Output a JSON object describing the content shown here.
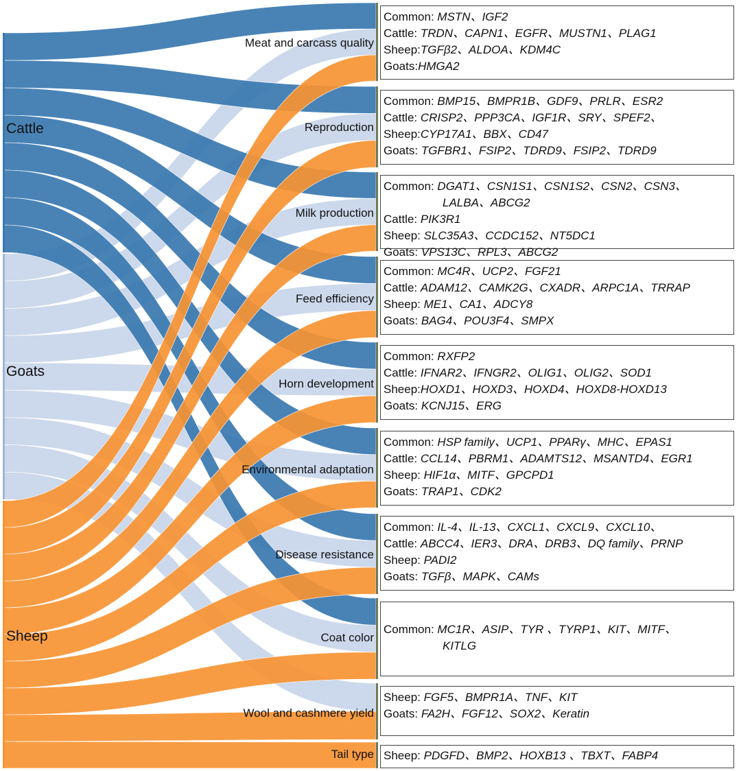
{
  "sources": [
    {
      "id": "cattle",
      "label": "Cattle",
      "color": "#3a78b0"
    },
    {
      "id": "goats",
      "label": "Goats",
      "color": "#c9d6ea"
    },
    {
      "id": "sheep",
      "label": "Sheep",
      "color": "#f79433"
    }
  ],
  "traits": [
    {
      "id": "meat",
      "label": "Meat and carcass quality"
    },
    {
      "id": "repro",
      "label": "Reproduction"
    },
    {
      "id": "milk",
      "label": "Milk production"
    },
    {
      "id": "feed",
      "label": "Feed efficiency"
    },
    {
      "id": "horn",
      "label": "Horn development"
    },
    {
      "id": "env",
      "label": "Environmental adaptation"
    },
    {
      "id": "disease",
      "label": "Disease resistance"
    },
    {
      "id": "coat",
      "label": "Coat color"
    },
    {
      "id": "wool",
      "label": "Wool and cashmere yield"
    },
    {
      "id": "tail",
      "label": "Tail type"
    }
  ],
  "gene_boxes": [
    {
      "trait": "meat",
      "lines": [
        {
          "prefix": "Common: ",
          "genes": "MSTN、IGF2"
        },
        {
          "prefix": "Cattle: ",
          "genes": "TRDN、CAPN1、EGFR、MUSTN1、PLAG1"
        },
        {
          "prefix": "Sheep:",
          "genes": "TGFβ2、ALDOA、KDM4C"
        },
        {
          "prefix": "Goats:",
          "genes": "HMGA2"
        }
      ]
    },
    {
      "trait": "repro",
      "lines": [
        {
          "prefix": "Common: ",
          "genes": "BMP15、BMPR1B、GDF9、PRLR、ESR2"
        },
        {
          "prefix": "Cattle: ",
          "genes": "CRISP2、PPP3CA、IGF1R、SRY、SPEF2、"
        },
        {
          "prefix": "Sheep:",
          "genes": "CYP17A1、BBX、CD47"
        },
        {
          "prefix": "Goats: ",
          "genes": "TGFBR1、FSIP2、TDRD9、FSIP2、TDRD9"
        }
      ]
    },
    {
      "trait": "milk",
      "lines": [
        {
          "prefix": "Common: ",
          "genes": "DGAT1、CSN1S1、CSN1S2、CSN2、CSN3、"
        },
        {
          "prefix": "",
          "genes": "LALBA、ABCG2",
          "cont": true
        },
        {
          "prefix": "Cattle: ",
          "genes": "PIK3R1"
        },
        {
          "prefix": "Sheep: ",
          "genes": "SLC35A3、CCDC152、NT5DC1"
        },
        {
          "prefix": "Goats: ",
          "genes": "VPS13C、RPL3、ABCG2"
        }
      ]
    },
    {
      "trait": "feed",
      "lines": [
        {
          "prefix": "Common: ",
          "genes": "MC4R、UCP2、FGF21"
        },
        {
          "prefix": "Cattle: ",
          "genes": "ADAM12、CAMK2G、CXADR、ARPC1A、TRRAP"
        },
        {
          "prefix": "Sheep: ",
          "genes": "ME1、CA1、ADCY8"
        },
        {
          "prefix": "Goats: ",
          "genes": "BAG4、POU3F4、SMPX"
        }
      ]
    },
    {
      "trait": "horn",
      "lines": [
        {
          "prefix": "Common: ",
          "genes": "RXFP2"
        },
        {
          "prefix": "Cattle: ",
          "genes": "IFNAR2、IFNGR2、OLIG1、OLIG2、SOD1"
        },
        {
          "prefix": "Sheep:",
          "genes": "HOXD1、HOXD3、HOXD4、HOXD8-HOXD13"
        },
        {
          "prefix": "Goats: ",
          "genes": "KCNJ15、ERG"
        }
      ]
    },
    {
      "trait": "env",
      "lines": [
        {
          "prefix": "Common: ",
          "genes": "HSP family、UCP1、PPARγ、MHC、EPAS1"
        },
        {
          "prefix": "Cattle: ",
          "genes": "CCL14、PBRM1、ADAMTS12、MSANTD4、EGR1"
        },
        {
          "prefix": "Sheep: ",
          "genes": "HIF1α、MITF、GPCPD1"
        },
        {
          "prefix": "Goats: ",
          "genes": "TRAP1、CDK2"
        }
      ]
    },
    {
      "trait": "disease",
      "lines": [
        {
          "prefix": "Common: ",
          "genes": "IL-4、IL-13、CXCL1、CXCL9、CXCL10、"
        },
        {
          "prefix": "Cattle: ",
          "genes": "ABCC4、IER3、DRA、DRB3、DQ family、PRNP"
        },
        {
          "prefix": "Sheep: ",
          "genes": "PADI2"
        },
        {
          "prefix": "Goats: ",
          "genes": "TGFβ、MAPK、CAMs"
        }
      ]
    },
    {
      "trait": "coat",
      "lines": [
        {
          "prefix": "Common: ",
          "genes": "MC1R、ASIP、TYR 、TYRP1、KIT、MITF、"
        },
        {
          "prefix": "",
          "genes": "KITLG",
          "cont": true
        }
      ]
    },
    {
      "trait": "wool",
      "lines": [
        {
          "prefix": "Sheep: ",
          "genes": "FGF5、BMPR1A、TNF、KIT"
        },
        {
          "prefix": "Goats: ",
          "genes": "FA2H、FGF12、SOX2、Keratin"
        }
      ]
    },
    {
      "trait": "tail",
      "lines": [
        {
          "prefix": "Sheep: ",
          "genes": "PDGFD、BMP2、HOXB13 、TBXT、FABP4"
        }
      ]
    }
  ],
  "flows": [
    {
      "source": "cattle",
      "target": "meat"
    },
    {
      "source": "cattle",
      "target": "repro"
    },
    {
      "source": "cattle",
      "target": "milk"
    },
    {
      "source": "cattle",
      "target": "feed"
    },
    {
      "source": "cattle",
      "target": "horn"
    },
    {
      "source": "cattle",
      "target": "env"
    },
    {
      "source": "cattle",
      "target": "disease"
    },
    {
      "source": "cattle",
      "target": "coat"
    },
    {
      "source": "goats",
      "target": "meat"
    },
    {
      "source": "goats",
      "target": "repro"
    },
    {
      "source": "goats",
      "target": "milk"
    },
    {
      "source": "goats",
      "target": "feed"
    },
    {
      "source": "goats",
      "target": "horn"
    },
    {
      "source": "goats",
      "target": "env"
    },
    {
      "source": "goats",
      "target": "disease"
    },
    {
      "source": "goats",
      "target": "coat"
    },
    {
      "source": "goats",
      "target": "wool"
    },
    {
      "source": "sheep",
      "target": "meat"
    },
    {
      "source": "sheep",
      "target": "repro"
    },
    {
      "source": "sheep",
      "target": "milk"
    },
    {
      "source": "sheep",
      "target": "feed"
    },
    {
      "source": "sheep",
      "target": "horn"
    },
    {
      "source": "sheep",
      "target": "env"
    },
    {
      "source": "sheep",
      "target": "disease"
    },
    {
      "source": "sheep",
      "target": "coat"
    },
    {
      "source": "sheep",
      "target": "wool"
    },
    {
      "source": "sheep",
      "target": "tail"
    }
  ]
}
